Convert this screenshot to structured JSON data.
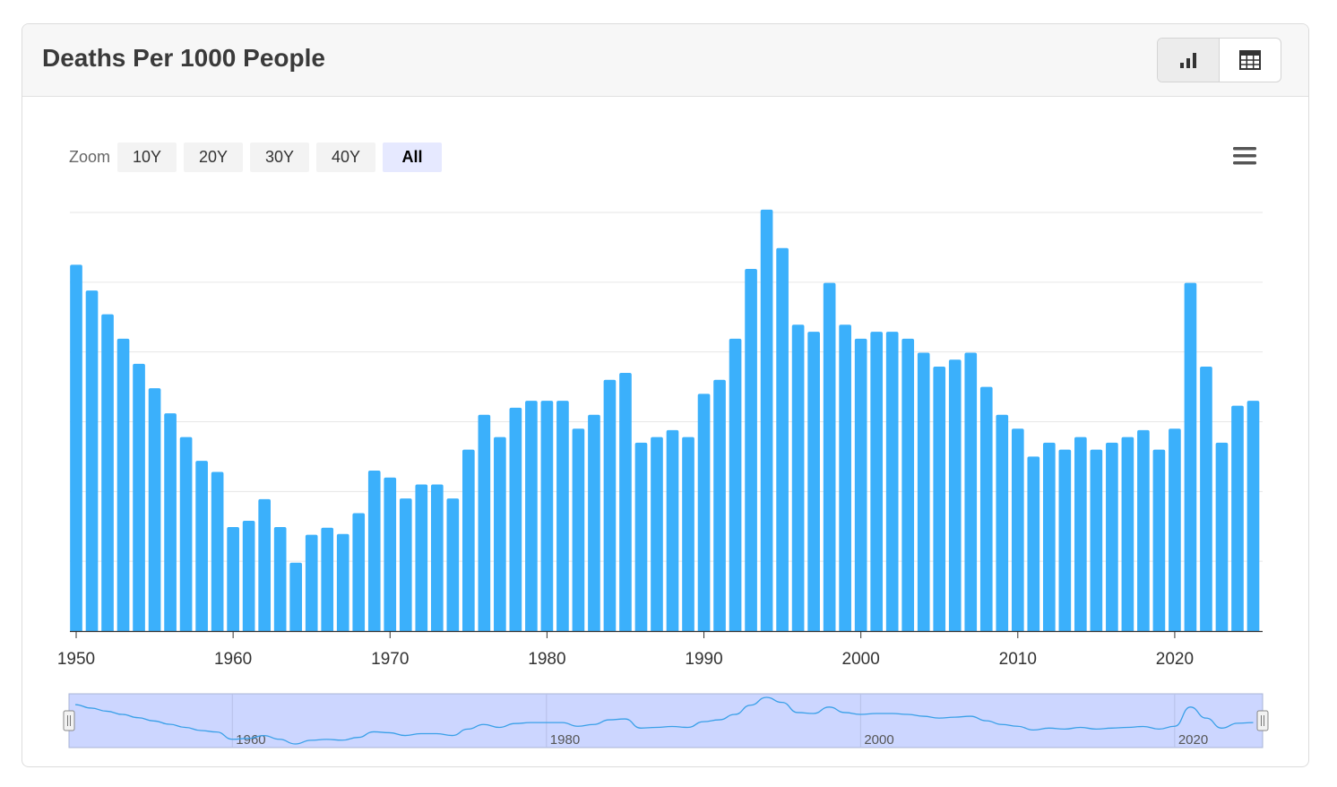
{
  "header": {
    "title": "Deaths Per 1000 People"
  },
  "view_toggle": {
    "chart_icon": "bar-chart-icon",
    "table_icon": "table-grid-icon"
  },
  "zoom": {
    "label": "Zoom",
    "buttons": [
      "10Y",
      "20Y",
      "30Y",
      "40Y",
      "All"
    ],
    "selected": "All"
  },
  "menu_icon": "hamburger-menu-icon",
  "colors": {
    "bar": "#3bb0fb",
    "navigator_fill": "#ccd6ff",
    "navigator_line": "#3aa0e8"
  },
  "chart_data": {
    "type": "bar",
    "title": "Deaths Per 1000 People",
    "xlabel": "",
    "ylabel": "",
    "grid": true,
    "x_ticks": [
      "1950",
      "1960",
      "1970",
      "1980",
      "1990",
      "2000",
      "2010",
      "2020"
    ],
    "navigator_ticks": [
      "1960",
      "1980",
      "2000",
      "2020"
    ],
    "ylim": [
      0,
      6
    ],
    "x": [
      1950,
      1951,
      1952,
      1953,
      1954,
      1955,
      1956,
      1957,
      1958,
      1959,
      1960,
      1961,
      1962,
      1963,
      1964,
      1965,
      1966,
      1967,
      1968,
      1969,
      1970,
      1971,
      1972,
      1973,
      1974,
      1975,
      1976,
      1977,
      1978,
      1979,
      1980,
      1981,
      1982,
      1983,
      1984,
      1985,
      1986,
      1987,
      1988,
      1989,
      1990,
      1991,
      1992,
      1993,
      1994,
      1995,
      1996,
      1997,
      1998,
      1999,
      2000,
      2001,
      2002,
      2003,
      2004,
      2005,
      2006,
      2007,
      2008,
      2009,
      2010,
      2011,
      2012,
      2013,
      2014,
      2015,
      2016,
      2017,
      2018,
      2019,
      2020,
      2021,
      2022,
      2023,
      2024,
      2025
    ],
    "values": [
      5.25,
      4.88,
      4.54,
      4.19,
      3.83,
      3.48,
      3.12,
      2.78,
      2.44,
      2.28,
      1.49,
      1.58,
      1.89,
      1.49,
      0.98,
      1.38,
      1.48,
      1.39,
      1.69,
      2.3,
      2.2,
      1.9,
      2.1,
      2.1,
      1.9,
      2.6,
      3.1,
      2.78,
      3.2,
      3.3,
      3.3,
      3.3,
      2.9,
      3.1,
      3.6,
      3.7,
      2.7,
      2.78,
      2.88,
      2.78,
      3.4,
      3.6,
      4.19,
      5.19,
      6.04,
      5.49,
      4.39,
      4.29,
      4.99,
      4.39,
      4.19,
      4.29,
      4.29,
      4.19,
      3.99,
      3.79,
      3.89,
      3.99,
      3.5,
      3.1,
      2.9,
      2.5,
      2.7,
      2.6,
      2.78,
      2.6,
      2.7,
      2.78,
      2.88,
      2.6,
      2.9,
      4.99,
      3.79,
      2.7,
      3.23,
      3.3
    ]
  }
}
